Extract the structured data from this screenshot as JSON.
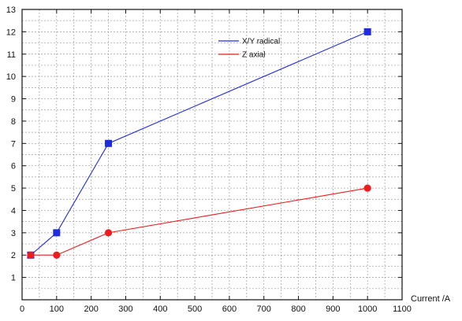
{
  "chart_data": {
    "type": "line",
    "title": "",
    "xlabel": "Current /A",
    "ylabel": "",
    "xlim": [
      0,
      1100
    ],
    "ylim": [
      0,
      13
    ],
    "x_ticks": [
      "0",
      "100",
      "200",
      "300",
      "400",
      "500",
      "600",
      "700",
      "800",
      "900",
      "1000",
      "1100"
    ],
    "y_ticks": [
      "1",
      "2",
      "3",
      "4",
      "5",
      "6",
      "7",
      "8",
      "9",
      "10",
      "11",
      "12",
      "13"
    ],
    "grid": true,
    "legend_position": "top-center",
    "series": [
      {
        "name": "X/Y radical",
        "color": "#1f2be0",
        "marker": "square",
        "x": [
          25,
          100,
          250,
          1000
        ],
        "y": [
          2,
          3,
          7,
          12
        ]
      },
      {
        "name": "Z axial",
        "color": "#ee1c1c",
        "marker": "circle",
        "x": [
          25,
          100,
          250,
          1000
        ],
        "y": [
          2,
          2,
          3,
          5
        ]
      }
    ]
  }
}
